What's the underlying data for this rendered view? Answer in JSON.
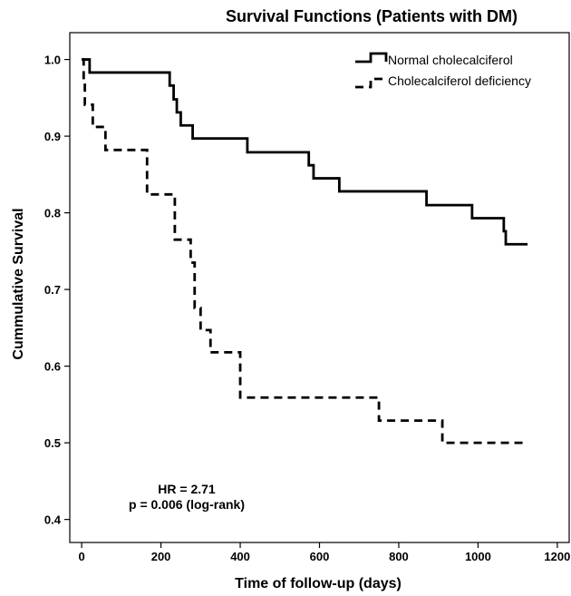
{
  "chart_data": {
    "type": "line",
    "subtype": "kaplan-meier step",
    "title": "Survival Functions (Patients with DM)",
    "xlabel": "Time of follow-up (days)",
    "ylabel": "Cummulative Survival",
    "xlim": [
      -30,
      1230
    ],
    "ylim": [
      0.37,
      1.035
    ],
    "xticks": [
      0,
      200,
      400,
      600,
      800,
      1000,
      1200
    ],
    "yticks": [
      0.4,
      0.5,
      0.6,
      0.7,
      0.8,
      0.9,
      1.0
    ],
    "ytick_labels": [
      "0.4",
      "0.5",
      "0.6",
      "0.7",
      "0.8",
      "0.9",
      "1.0"
    ],
    "grid": false,
    "legend_position": "top-right",
    "series": [
      {
        "name": "Normal cholecalciferol",
        "line_style": "solid",
        "color": "#000000",
        "steps": [
          [
            0,
            1.0
          ],
          [
            20,
            0.983
          ],
          [
            222,
            0.966
          ],
          [
            232,
            0.948
          ],
          [
            240,
            0.931
          ],
          [
            250,
            0.914
          ],
          [
            280,
            0.897
          ],
          [
            418,
            0.879
          ],
          [
            573,
            0.862
          ],
          [
            585,
            0.845
          ],
          [
            650,
            0.828
          ],
          [
            870,
            0.81
          ],
          [
            985,
            0.793
          ],
          [
            1065,
            0.776
          ],
          [
            1070,
            0.759
          ]
        ],
        "end_x": 1125
      },
      {
        "name": "Cholecalciferol deficiency",
        "line_style": "dashed",
        "color": "#000000",
        "steps": [
          [
            0,
            1.0
          ],
          [
            5,
            0.971
          ],
          [
            8,
            0.941
          ],
          [
            28,
            0.912
          ],
          [
            60,
            0.882
          ],
          [
            165,
            0.824
          ],
          [
            235,
            0.765
          ],
          [
            275,
            0.735
          ],
          [
            285,
            0.676
          ],
          [
            300,
            0.647
          ],
          [
            325,
            0.618
          ],
          [
            400,
            0.559
          ],
          [
            750,
            0.529
          ],
          [
            910,
            0.5
          ]
        ],
        "end_x": 1125
      }
    ],
    "annotations": [
      "HR = 2.71",
      "p = 0.006 (log-rank)"
    ]
  }
}
